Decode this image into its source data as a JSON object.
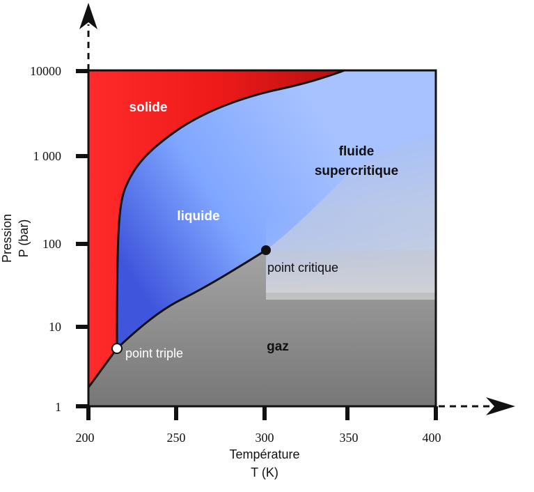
{
  "diagram": {
    "axes": {
      "x": {
        "label_line1": "Température",
        "label_line2": "T (K)",
        "ticks": [
          "200",
          "250",
          "300",
          "350",
          "400"
        ]
      },
      "y": {
        "label_line1": "Pression",
        "label_line2": "P (bar)",
        "ticks": [
          "1",
          "10",
          "100",
          "1 000",
          "10000"
        ]
      }
    },
    "regions": {
      "solid": "solide",
      "liquid": "liquide",
      "gas": "gaz",
      "supercritical_line1": "fluide",
      "supercritical_line2": "supercritique"
    },
    "points": {
      "triple": "point triple",
      "critical": "point critique"
    },
    "colors": {
      "solid": "#e31a1a",
      "liquid_dark": "#4a5ee0",
      "liquid_light": "#9fbcff",
      "gas_light": "#d6d6d6",
      "gas_dark": "#7a7a7a",
      "outline": "#111111"
    }
  }
}
